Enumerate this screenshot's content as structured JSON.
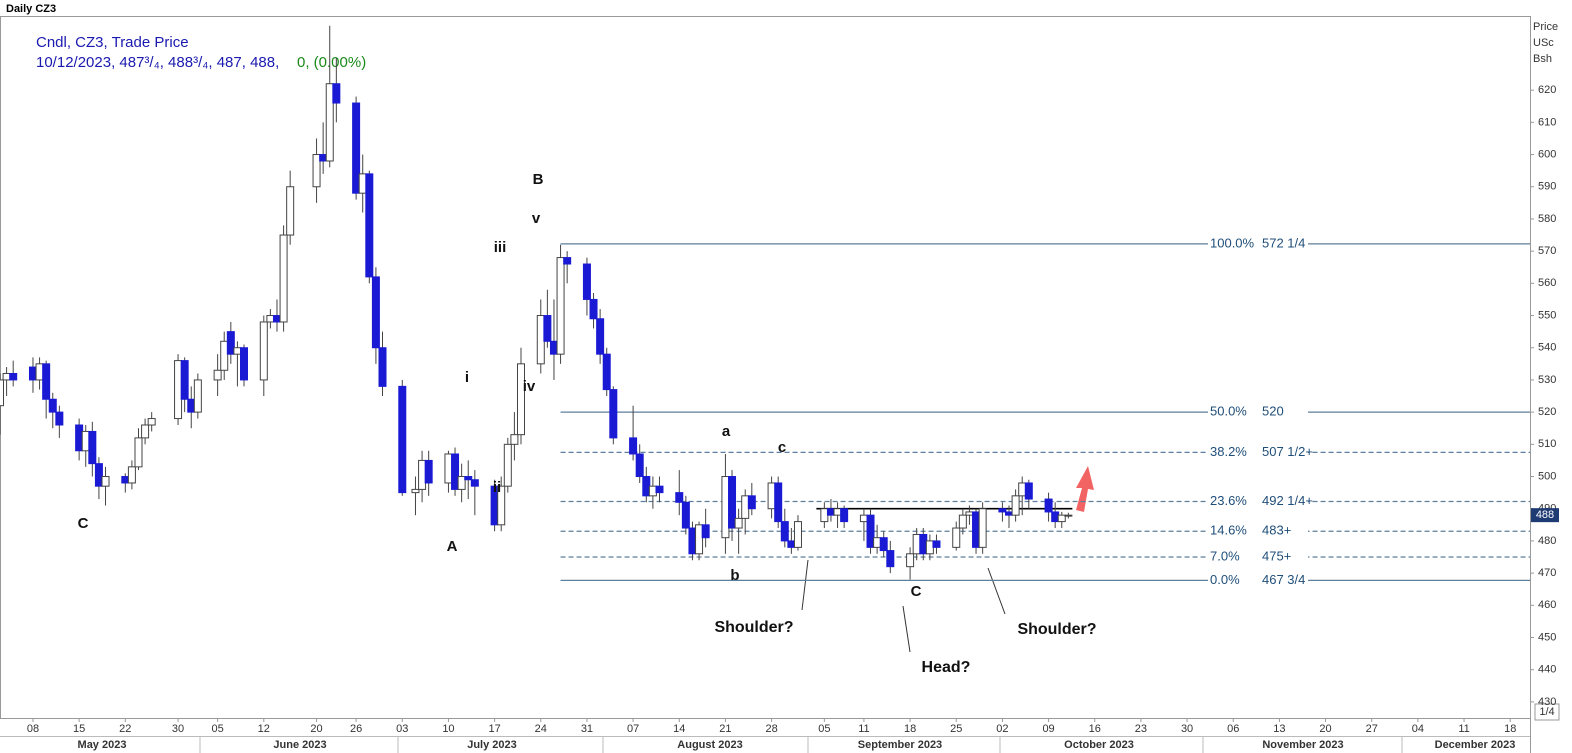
{
  "chart_data": {
    "type": "candlestick",
    "title": "Daily CZ3",
    "legend_title": "Cndl, CZ3, Trade Price",
    "legend_info": "10/12/2023, 487³/₄, 488³/₄, 487, 488,",
    "legend_change": "0, (0.00%)",
    "y_axis_label": [
      "Price",
      "USc",
      "Bsh"
    ],
    "up_color": "#ffffff",
    "down_color": "#1a1ad4",
    "ylim": [
      425,
      648
    ],
    "yticks": [
      430,
      440,
      450,
      460,
      470,
      480,
      490,
      500,
      510,
      520,
      530,
      540,
      550,
      560,
      570,
      580,
      590,
      600,
      610,
      620
    ],
    "xlim": [
      "2023-05-03",
      "2023-12-21"
    ],
    "xticks": [
      {
        "value": "2023-05-08",
        "label": "08"
      },
      {
        "value": "2023-05-15",
        "label": "15"
      },
      {
        "value": "2023-05-22",
        "label": "22"
      },
      {
        "value": "2023-05-30",
        "label": "30"
      },
      {
        "value": "2023-06-05",
        "label": "05"
      },
      {
        "value": "2023-06-12",
        "label": "12"
      },
      {
        "value": "2023-06-20",
        "label": "20"
      },
      {
        "value": "2023-06-26",
        "label": "26"
      },
      {
        "value": "2023-07-03",
        "label": "03"
      },
      {
        "value": "2023-07-10",
        "label": "10"
      },
      {
        "value": "2023-07-17",
        "label": "17"
      },
      {
        "value": "2023-07-24",
        "label": "24"
      },
      {
        "value": "2023-07-31",
        "label": "31"
      },
      {
        "value": "2023-08-07",
        "label": "07"
      },
      {
        "value": "2023-08-14",
        "label": "14"
      },
      {
        "value": "2023-08-21",
        "label": "21"
      },
      {
        "value": "2023-08-28",
        "label": "28"
      },
      {
        "value": "2023-09-05",
        "label": "05"
      },
      {
        "value": "2023-09-11",
        "label": "11"
      },
      {
        "value": "2023-09-18",
        "label": "18"
      },
      {
        "value": "2023-09-25",
        "label": "25"
      },
      {
        "value": "2023-10-02",
        "label": "02"
      },
      {
        "value": "2023-10-09",
        "label": "09"
      },
      {
        "value": "2023-10-16",
        "label": "16"
      },
      {
        "value": "2023-10-23",
        "label": "23"
      },
      {
        "value": "2023-10-30",
        "label": "30"
      },
      {
        "value": "2023-11-06",
        "label": "06"
      },
      {
        "value": "2023-11-13",
        "label": "13"
      },
      {
        "value": "2023-11-20",
        "label": "20"
      },
      {
        "value": "2023-11-27",
        "label": "27"
      },
      {
        "value": "2023-12-04",
        "label": "04"
      },
      {
        "value": "2023-12-11",
        "label": "11"
      },
      {
        "value": "2023-12-18",
        "label": "18"
      }
    ],
    "month_labels": [
      "May 2023",
      "June 2023",
      "July 2023",
      "August 2023",
      "September 2023",
      "October 2023",
      "November 2023",
      "December 2023"
    ],
    "x": [
      "2023-05-03",
      "2023-05-04",
      "2023-05-05",
      "2023-05-08",
      "2023-05-09",
      "2023-05-10",
      "2023-05-11",
      "2023-05-12",
      "2023-05-15",
      "2023-05-16",
      "2023-05-17",
      "2023-05-18",
      "2023-05-19",
      "2023-05-22",
      "2023-05-23",
      "2023-05-24",
      "2023-05-25",
      "2023-05-26",
      "2023-05-30",
      "2023-05-31",
      "2023-06-01",
      "2023-06-02",
      "2023-06-05",
      "2023-06-06",
      "2023-06-07",
      "2023-06-08",
      "2023-06-09",
      "2023-06-12",
      "2023-06-13",
      "2023-06-14",
      "2023-06-15",
      "2023-06-16",
      "2023-06-20",
      "2023-06-21",
      "2023-06-22",
      "2023-06-23",
      "2023-06-26",
      "2023-06-27",
      "2023-06-28",
      "2023-06-29",
      "2023-06-30",
      "2023-07-03",
      "2023-07-05",
      "2023-07-06",
      "2023-07-07",
      "2023-07-10",
      "2023-07-11",
      "2023-07-12",
      "2023-07-13",
      "2023-07-14",
      "2023-07-17",
      "2023-07-18",
      "2023-07-19",
      "2023-07-20",
      "2023-07-21",
      "2023-07-24",
      "2023-07-25",
      "2023-07-26",
      "2023-07-27",
      "2023-07-28",
      "2023-07-31",
      "2023-08-01",
      "2023-08-02",
      "2023-08-03",
      "2023-08-04",
      "2023-08-07",
      "2023-08-08",
      "2023-08-09",
      "2023-08-10",
      "2023-08-11",
      "2023-08-14",
      "2023-08-15",
      "2023-08-16",
      "2023-08-17",
      "2023-08-18",
      "2023-08-21",
      "2023-08-22",
      "2023-08-23",
      "2023-08-24",
      "2023-08-25",
      "2023-08-28",
      "2023-08-29",
      "2023-08-30",
      "2023-08-31",
      "2023-09-01",
      "2023-09-05",
      "2023-09-06",
      "2023-09-07",
      "2023-09-08",
      "2023-09-11",
      "2023-09-12",
      "2023-09-13",
      "2023-09-14",
      "2023-09-15",
      "2023-09-18",
      "2023-09-19",
      "2023-09-20",
      "2023-09-21",
      "2023-09-22",
      "2023-09-25",
      "2023-09-26",
      "2023-09-27",
      "2023-09-28",
      "2023-09-29",
      "2023-10-02",
      "2023-10-03",
      "2023-10-04",
      "2023-10-05",
      "2023-10-06",
      "2023-10-09",
      "2023-10-10",
      "2023-10-11",
      "2023-10-12"
    ],
    "open": [
      522,
      530,
      532,
      534,
      530,
      535,
      524,
      520,
      516,
      508,
      514,
      504,
      497,
      500,
      498,
      503,
      512,
      516,
      518,
      536,
      524,
      520,
      530,
      533,
      545,
      538,
      540,
      530,
      548,
      550,
      548,
      575,
      590,
      600,
      598,
      622,
      616,
      588,
      594,
      562,
      540,
      528,
      495,
      496,
      505,
      498,
      507,
      496,
      500,
      499,
      497,
      485,
      497,
      510,
      513,
      535,
      550,
      542,
      538,
      568,
      566,
      555,
      549,
      538,
      527,
      512,
      507,
      500,
      494,
      497,
      495,
      492,
      484,
      476,
      485,
      481,
      500,
      484,
      487,
      494,
      490,
      498,
      486,
      480,
      478,
      486,
      490,
      488,
      490,
      486,
      488,
      478,
      481,
      477,
      472,
      476,
      482,
      476,
      480,
      478,
      484,
      488,
      489,
      478,
      490,
      489,
      488,
      494,
      498,
      493,
      489,
      486,
      487.75
    ],
    "high": [
      532,
      534,
      536,
      537,
      537,
      536,
      526,
      522,
      518,
      516,
      517,
      506,
      503,
      501,
      505,
      515,
      518,
      520,
      538,
      537,
      528,
      532,
      538,
      545,
      548,
      542,
      541,
      550,
      552,
      555,
      578,
      595,
      605,
      610,
      640,
      630,
      618,
      600,
      595,
      565,
      545,
      530,
      500,
      508,
      508,
      508,
      509,
      504,
      505,
      502,
      499,
      500,
      512,
      520,
      540,
      555,
      558,
      555,
      572,
      570,
      568,
      557,
      552,
      540,
      528,
      522,
      510,
      503,
      500,
      500,
      502,
      494,
      486,
      486,
      490,
      507,
      502,
      490,
      496,
      498,
      500,
      500,
      490,
      484,
      488,
      492,
      493,
      492,
      491,
      490,
      490,
      485,
      483,
      480,
      478,
      484,
      484,
      482,
      482,
      486,
      490,
      491,
      490,
      492,
      492,
      491,
      496,
      500,
      499,
      495,
      492,
      489,
      488.75
    ],
    "low": [
      513,
      525,
      528,
      526,
      527,
      518,
      515,
      512,
      505,
      503,
      500,
      493,
      491,
      495,
      496,
      502,
      510,
      514,
      516,
      520,
      515,
      518,
      525,
      530,
      535,
      528,
      528,
      525,
      546,
      545,
      545,
      572,
      585,
      594,
      596,
      610,
      586,
      582,
      560,
      535,
      525,
      494,
      488,
      492,
      494,
      495,
      494,
      492,
      493,
      488,
      483,
      483,
      495,
      505,
      510,
      532,
      540,
      530,
      535,
      560,
      550,
      546,
      535,
      525,
      510,
      505,
      498,
      492,
      490,
      492,
      488,
      482,
      474,
      474,
      478,
      476,
      480,
      476,
      482,
      488,
      487,
      484,
      478,
      476,
      477,
      484,
      486,
      484,
      484,
      480,
      476,
      476,
      475,
      470,
      468,
      474,
      474,
      474,
      476,
      477,
      482,
      485,
      476,
      476,
      486,
      484,
      486,
      488,
      490,
      486,
      484,
      484,
      487
    ],
    "close": [
      530,
      532,
      530,
      530,
      535,
      524,
      520,
      516,
      508,
      514,
      504,
      497,
      500,
      498,
      503,
      512,
      516,
      518,
      536,
      524,
      520,
      530,
      533,
      542,
      538,
      540,
      530,
      548,
      550,
      548,
      575,
      590,
      600,
      598,
      622,
      616,
      588,
      594,
      562,
      540,
      528,
      495,
      496,
      505,
      498,
      507,
      496,
      500,
      499,
      497,
      485,
      497,
      510,
      513,
      535,
      550,
      542,
      538,
      568,
      566,
      555,
      549,
      538,
      527,
      512,
      507,
      500,
      494,
      497,
      495,
      492,
      484,
      476,
      485,
      481,
      500,
      484,
      487,
      494,
      490,
      498,
      486,
      480,
      478,
      486,
      490,
      488,
      490,
      486,
      488,
      478,
      481,
      477,
      472,
      476,
      482,
      476,
      480,
      478,
      484,
      488,
      489,
      478,
      490,
      489,
      488,
      494,
      498,
      493,
      489,
      486,
      488,
      488
    ],
    "last_price": 488,
    "fib_levels": [
      {
        "label": "100.0%",
        "price_label": "572 1/4",
        "value": 572.25,
        "style": "solid"
      },
      {
        "label": "50.0%",
        "price_label": "520",
        "value": 520,
        "style": "solid"
      },
      {
        "label": "38.2%",
        "price_label": "507 1/2+",
        "value": 507.5,
        "style": "dashed"
      },
      {
        "label": "23.6%",
        "price_label": "492 1/4+",
        "value": 492.25,
        "style": "dashed"
      },
      {
        "label": "14.6%",
        "price_label": "483+",
        "value": 483,
        "style": "dashed"
      },
      {
        "label": "7.0%",
        "price_label": "475+",
        "value": 475,
        "style": "dashed"
      },
      {
        "label": "0.0%",
        "price_label": "467 3/4",
        "value": 467.75,
        "style": "solid"
      }
    ],
    "fib_start": "2023-07-27",
    "neckline": {
      "value": 490,
      "x": [
        "2023-09-05",
        "2023-10-12"
      ]
    },
    "wave_labels": [
      "C",
      "A",
      "B",
      "v",
      "iii",
      "i",
      "ii",
      "iv",
      "a",
      "b",
      "c",
      "C"
    ],
    "pattern_labels": [
      "Shoulder?",
      "Head?",
      "Shoulder?"
    ],
    "page_marker": "1/4"
  }
}
